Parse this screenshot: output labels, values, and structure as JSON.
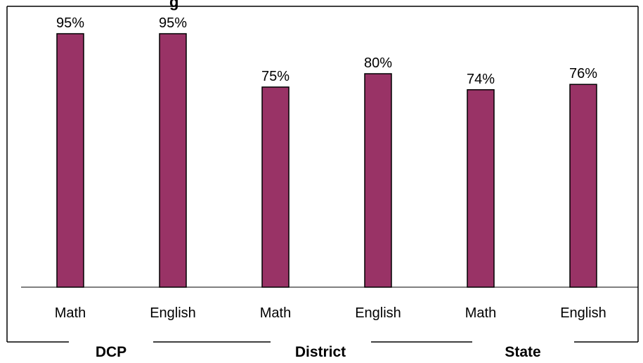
{
  "chart_data": {
    "type": "bar",
    "title": "",
    "title_partial_visible": "g",
    "categories": [
      "Math",
      "English",
      "Math",
      "English",
      "Math",
      "English"
    ],
    "groups": [
      {
        "label": "DCP",
        "categories": [
          "Math",
          "English"
        ]
      },
      {
        "label": "District",
        "categories": [
          "Math",
          "English"
        ]
      },
      {
        "label": "State",
        "categories": [
          "Math",
          "English"
        ]
      }
    ],
    "values": [
      95,
      95,
      75,
      80,
      74,
      76
    ],
    "value_labels": [
      "95%",
      "95%",
      "75%",
      "80%",
      "74%",
      "76%"
    ],
    "ylim": [
      0,
      100
    ],
    "unit": "%",
    "grid": false,
    "legend": "none",
    "colors": {
      "bar": "#993366",
      "bar_stroke": "#000000",
      "frame": "#000000"
    }
  }
}
